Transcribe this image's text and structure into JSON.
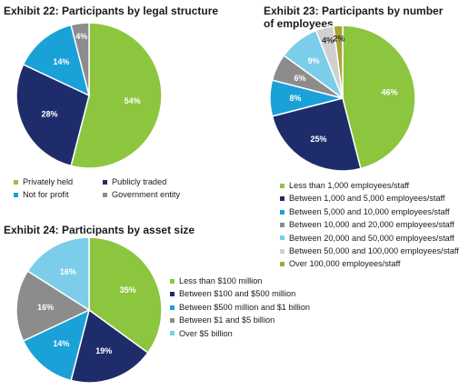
{
  "colors": {
    "green": "#8cc63f",
    "navy": "#1f2c6b",
    "cyan": "#1aa1d8",
    "gray": "#8c8c8c",
    "lightblue": "#7ccdea",
    "lightgray": "#d0d0d0",
    "olive": "#a8a43a"
  },
  "chart_data": [
    {
      "type": "pie",
      "title": "Exhibit  22: Participants by legal structure",
      "categories": [
        "Privately held",
        "Publicly traded",
        "Not for profit",
        "Government entity"
      ],
      "values": [
        54,
        28,
        14,
        4
      ],
      "value_labels": [
        "54%",
        "28%",
        "14%",
        "4%"
      ],
      "colors": [
        "#8cc63f",
        "#1f2c6b",
        "#1aa1d8",
        "#8c8c8c"
      ],
      "legend_position": "bottom"
    },
    {
      "type": "pie",
      "title": "Exhibit  23: Participants by number of employees",
      "categories": [
        "Less than 1,000 employees/staff",
        "Between 1,000 and 5,000 employees/staff",
        "Between 5,000 and 10,000 employees/staff",
        "Between 10,000 and 20,000 employees/staff",
        "Between 20,000 and 50,000 employees/staff",
        "Between 50,000 and 100,000 employees/staff",
        "Over 100,000 employees/staff"
      ],
      "values": [
        46,
        25,
        8,
        6,
        9,
        4,
        2
      ],
      "value_labels": [
        "46%",
        "25%",
        "8%",
        "6%",
        "9%",
        "4%",
        "2%"
      ],
      "colors": [
        "#8cc63f",
        "#1f2c6b",
        "#1aa1d8",
        "#8c8c8c",
        "#7ccdea",
        "#d0d0d0",
        "#a8a43a"
      ],
      "legend_position": "bottom"
    },
    {
      "type": "pie",
      "title": "Exhibit  24: Participants by asset size",
      "categories": [
        "Less than $100 million",
        "Between $100 and $500 million",
        "Between $500 million and $1 billion",
        "Between $1 and $5 billion",
        "Over $5 billion"
      ],
      "values": [
        35,
        19,
        14,
        16,
        16
      ],
      "value_labels": [
        "35%",
        "19%",
        "14%",
        "16%",
        "16%"
      ],
      "colors": [
        "#8cc63f",
        "#1f2c6b",
        "#1aa1d8",
        "#8c8c8c",
        "#7ccdea"
      ],
      "legend_position": "right"
    }
  ]
}
